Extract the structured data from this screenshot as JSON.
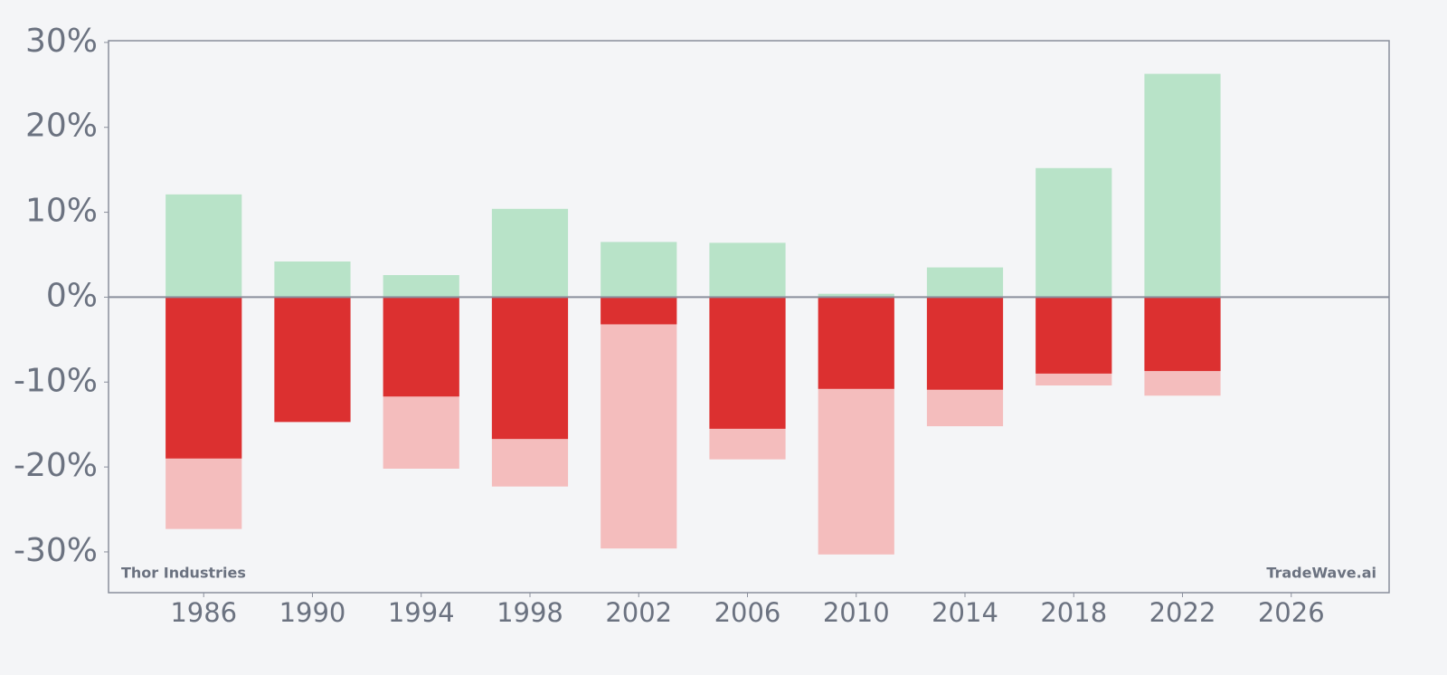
{
  "chart_data": {
    "type": "bar",
    "overlap": true,
    "x": [
      1986,
      1990,
      1994,
      1998,
      2002,
      2006,
      2010,
      2014,
      2018,
      2022
    ],
    "series": [
      {
        "color": "#b8e3c8",
        "values": [
          12.1,
          4.2,
          2.6,
          10.4,
          6.5,
          6.4,
          0.4,
          3.5,
          15.2,
          26.3
        ]
      },
      {
        "color": "#f4bdbd",
        "values": [
          -27.3,
          -14.7,
          -20.2,
          -22.3,
          -29.6,
          -19.1,
          -30.3,
          -15.2,
          -10.4,
          -11.6
        ]
      },
      {
        "color": "#dc3030",
        "values": [
          -19.0,
          -14.7,
          -11.7,
          -16.7,
          -3.2,
          -15.5,
          -10.8,
          -10.9,
          -9.0,
          -8.7
        ]
      }
    ],
    "xlim": [
      1982.5,
      2029.6
    ],
    "ylim": [
      -34.8,
      30.2
    ],
    "xticks": [
      1986,
      1990,
      1994,
      1998,
      2002,
      2006,
      2010,
      2014,
      2018,
      2022,
      2026
    ],
    "yticks": [
      {
        "value": -30,
        "label": "-30%"
      },
      {
        "value": -20,
        "label": "-20%"
      },
      {
        "value": -10,
        "label": "-10%"
      },
      {
        "value": 0,
        "label": "0%"
      },
      {
        "value": 10,
        "label": "10%"
      },
      {
        "value": 20,
        "label": "20%"
      },
      {
        "value": 30,
        "label": "30%"
      }
    ],
    "annotations": [
      "Thor Industries",
      "TradeWave.ai"
    ],
    "bar_width": 2.8
  }
}
